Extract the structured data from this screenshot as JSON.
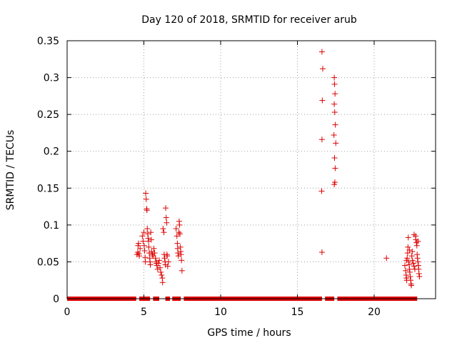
{
  "chart_data": {
    "type": "scatter",
    "title": "Day 120 of 2018, SRMTID for receiver arub",
    "xlabel": "GPS time / hours",
    "ylabel": "SRMTID / TECUs",
    "xlim": [
      0,
      24
    ],
    "ylim": [
      0,
      0.35
    ],
    "xticks": [
      0,
      5,
      10,
      15,
      20
    ],
    "xtick_labels": [
      "0",
      "5",
      "10",
      "15",
      "20"
    ],
    "yticks": [
      0,
      0.05,
      0.1,
      0.15,
      0.2,
      0.25,
      0.3,
      0.35
    ],
    "ytick_labels": [
      "0",
      "0.05",
      "0.1",
      "0.15",
      "0.2",
      "0.25",
      "0.3",
      "0.35"
    ],
    "grid": true,
    "marker": "+",
    "color": "#dd0000",
    "series": [
      {
        "name": "SRMTID",
        "points": [
          [
            4.55,
            0.06
          ],
          [
            4.6,
            0.063
          ],
          [
            4.65,
            0.075
          ],
          [
            4.7,
            0.058
          ],
          [
            4.75,
            0.068
          ],
          [
            4.62,
            0.072
          ],
          [
            4.68,
            0.061
          ],
          [
            4.9,
            0.085
          ],
          [
            4.95,
            0.078
          ],
          [
            5.0,
            0.09
          ],
          [
            5.02,
            0.072
          ],
          [
            5.05,
            0.065
          ],
          [
            5.08,
            0.056
          ],
          [
            5.1,
            0.05
          ],
          [
            5.12,
            0.143
          ],
          [
            5.15,
            0.135
          ],
          [
            5.18,
            0.122
          ],
          [
            5.2,
            0.12
          ],
          [
            5.22,
            0.095
          ],
          [
            5.25,
            0.088
          ],
          [
            5.28,
            0.082
          ],
          [
            5.3,
            0.078
          ],
          [
            5.32,
            0.07
          ],
          [
            5.35,
            0.062
          ],
          [
            5.38,
            0.055
          ],
          [
            5.4,
            0.05
          ],
          [
            5.42,
            0.046
          ],
          [
            5.45,
            0.09
          ],
          [
            5.48,
            0.08
          ],
          [
            5.5,
            0.064
          ],
          [
            5.55,
            0.06
          ],
          [
            5.6,
            0.058
          ],
          [
            5.65,
            0.068
          ],
          [
            5.7,
            0.062
          ],
          [
            5.75,
            0.055
          ],
          [
            5.8,
            0.05
          ],
          [
            5.82,
            0.048
          ],
          [
            5.85,
            0.045
          ],
          [
            5.9,
            0.04
          ],
          [
            5.95,
            0.048
          ],
          [
            6.0,
            0.052
          ],
          [
            6.05,
            0.042
          ],
          [
            6.1,
            0.036
          ],
          [
            6.15,
            0.032
          ],
          [
            6.2,
            0.028
          ],
          [
            6.22,
            0.022
          ],
          [
            6.25,
            0.095
          ],
          [
            6.3,
            0.09
          ],
          [
            6.32,
            0.06
          ],
          [
            6.35,
            0.055
          ],
          [
            6.38,
            0.05
          ],
          [
            6.4,
            0.046
          ],
          [
            6.42,
            0.123
          ],
          [
            6.45,
            0.11
          ],
          [
            6.48,
            0.103
          ],
          [
            6.5,
            0.06
          ],
          [
            6.52,
            0.058
          ],
          [
            6.55,
            0.044
          ],
          [
            6.6,
            0.05
          ],
          [
            7.1,
            0.095
          ],
          [
            7.15,
            0.085
          ],
          [
            7.18,
            0.075
          ],
          [
            7.2,
            0.068
          ],
          [
            7.22,
            0.062
          ],
          [
            7.25,
            0.058
          ],
          [
            7.28,
            0.09
          ],
          [
            7.3,
            0.105
          ],
          [
            7.32,
            0.1
          ],
          [
            7.35,
            0.088
          ],
          [
            7.38,
            0.07
          ],
          [
            7.4,
            0.064
          ],
          [
            7.42,
            0.06
          ],
          [
            7.45,
            0.052
          ],
          [
            7.48,
            0.038
          ],
          [
            16.6,
            0.335
          ],
          [
            16.65,
            0.312
          ],
          [
            16.62,
            0.269
          ],
          [
            16.6,
            0.216
          ],
          [
            16.58,
            0.146
          ],
          [
            16.6,
            0.063
          ],
          [
            17.4,
            0.3
          ],
          [
            17.42,
            0.291
          ],
          [
            17.45,
            0.278
          ],
          [
            17.4,
            0.264
          ],
          [
            17.43,
            0.253
          ],
          [
            17.47,
            0.236
          ],
          [
            17.38,
            0.222
          ],
          [
            17.5,
            0.211
          ],
          [
            17.42,
            0.191
          ],
          [
            17.46,
            0.177
          ],
          [
            17.44,
            0.158
          ],
          [
            17.4,
            0.155
          ],
          [
            20.8,
            0.055
          ],
          [
            22.0,
            0.045
          ],
          [
            22.05,
            0.038
          ],
          [
            22.08,
            0.032
          ],
          [
            22.1,
            0.028
          ],
          [
            22.12,
            0.025
          ],
          [
            22.15,
            0.055
          ],
          [
            22.18,
            0.062
          ],
          [
            22.2,
            0.07
          ],
          [
            22.22,
            0.083
          ],
          [
            22.25,
            0.05
          ],
          [
            22.28,
            0.046
          ],
          [
            22.3,
            0.04
          ],
          [
            22.32,
            0.036
          ],
          [
            22.35,
            0.03
          ],
          [
            22.38,
            0.025
          ],
          [
            22.4,
            0.02
          ],
          [
            22.42,
            0.018
          ],
          [
            22.45,
            0.058
          ],
          [
            22.48,
            0.064
          ],
          [
            22.5,
            0.052
          ],
          [
            22.55,
            0.048
          ],
          [
            22.6,
            0.044
          ],
          [
            22.65,
            0.04
          ],
          [
            22.7,
            0.085
          ],
          [
            22.72,
            0.08
          ],
          [
            22.75,
            0.076
          ],
          [
            22.78,
            0.072
          ],
          [
            22.8,
            0.06
          ],
          [
            22.82,
            0.055
          ],
          [
            22.85,
            0.05
          ],
          [
            22.88,
            0.045
          ],
          [
            22.9,
            0.04
          ],
          [
            22.92,
            0.034
          ],
          [
            22.95,
            0.03
          ],
          [
            22.3,
            0.066
          ],
          [
            22.1,
            0.052
          ],
          [
            22.6,
            0.087
          ],
          [
            22.85,
            0.078
          ]
        ]
      }
    ],
    "baseline": {
      "y": 0,
      "segments": [
        [
          0,
          4.5
        ],
        [
          4.7,
          5.4
        ],
        [
          5.6,
          6.0
        ],
        [
          6.4,
          6.7
        ],
        [
          6.85,
          7.4
        ],
        [
          7.6,
          16.6
        ],
        [
          16.8,
          17.4
        ],
        [
          17.6,
          22.8
        ]
      ]
    }
  }
}
